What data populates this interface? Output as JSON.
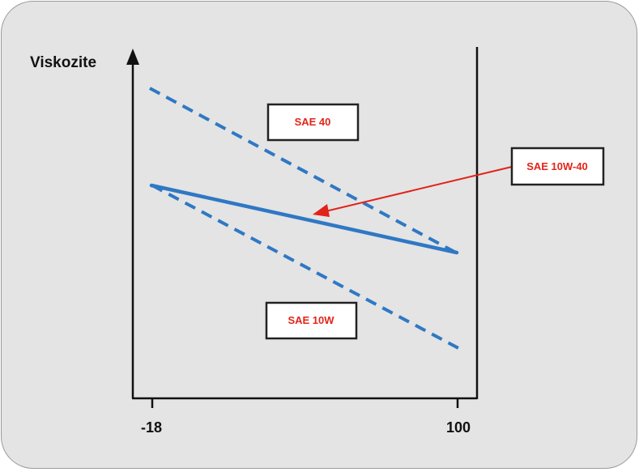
{
  "diagram": {
    "y_axis_label": "Viskozite",
    "x_ticks": [
      "-18",
      "100"
    ],
    "grades": {
      "sae40": "SAE 40",
      "sae10w": "SAE 10W",
      "multigrade": "SAE 10W-40"
    },
    "colors": {
      "panel_bg": "#e4e4e4",
      "line_blue": "#2f78c4",
      "label_red": "#e1251b",
      "arrow_red": "#e2231a",
      "axis": "#111111"
    }
  }
}
